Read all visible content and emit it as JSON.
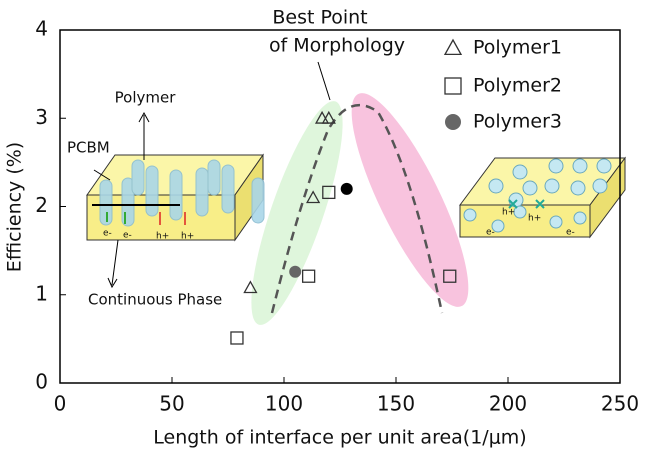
{
  "chart_data": {
    "type": "scatter",
    "xlabel": "Length of interface per unit area(1/μm)",
    "ylabel": "Efficiency (%)",
    "xlim": [
      0,
      250
    ],
    "ylim": [
      0,
      4
    ],
    "xticks": [
      0,
      50,
      100,
      150,
      200,
      250
    ],
    "yticks": [
      0,
      1,
      2,
      3,
      4
    ],
    "series": [
      {
        "name": "Polymer1",
        "marker": "triangle",
        "color": "#333333",
        "x": [
          85,
          113,
          117,
          120
        ],
        "values": [
          1.08,
          2.1,
          3.0,
          3.0
        ]
      },
      {
        "name": "Polymer2",
        "marker": "square",
        "color": "#333333",
        "x": [
          79,
          111,
          120,
          174
        ],
        "values": [
          0.51,
          1.21,
          2.16,
          1.21
        ]
      },
      {
        "name": "Polymer3",
        "marker": "circle",
        "color": "#666666",
        "point_colors": [
          "#666666",
          "#000000"
        ],
        "x": [
          105,
          128
        ],
        "values": [
          1.26,
          2.2
        ]
      }
    ],
    "annotations": {
      "best_point": [
        "Best Point",
        "of Morphology"
      ],
      "polymer": "Polymer",
      "pcbm": "PCBM",
      "continuous_phase": "Continuous Phase",
      "left_inset_labels": [
        "e-",
        "e-",
        "h+",
        "h+"
      ],
      "right_inset_labels": [
        "h+",
        "h+",
        "e-",
        "e-"
      ]
    }
  }
}
